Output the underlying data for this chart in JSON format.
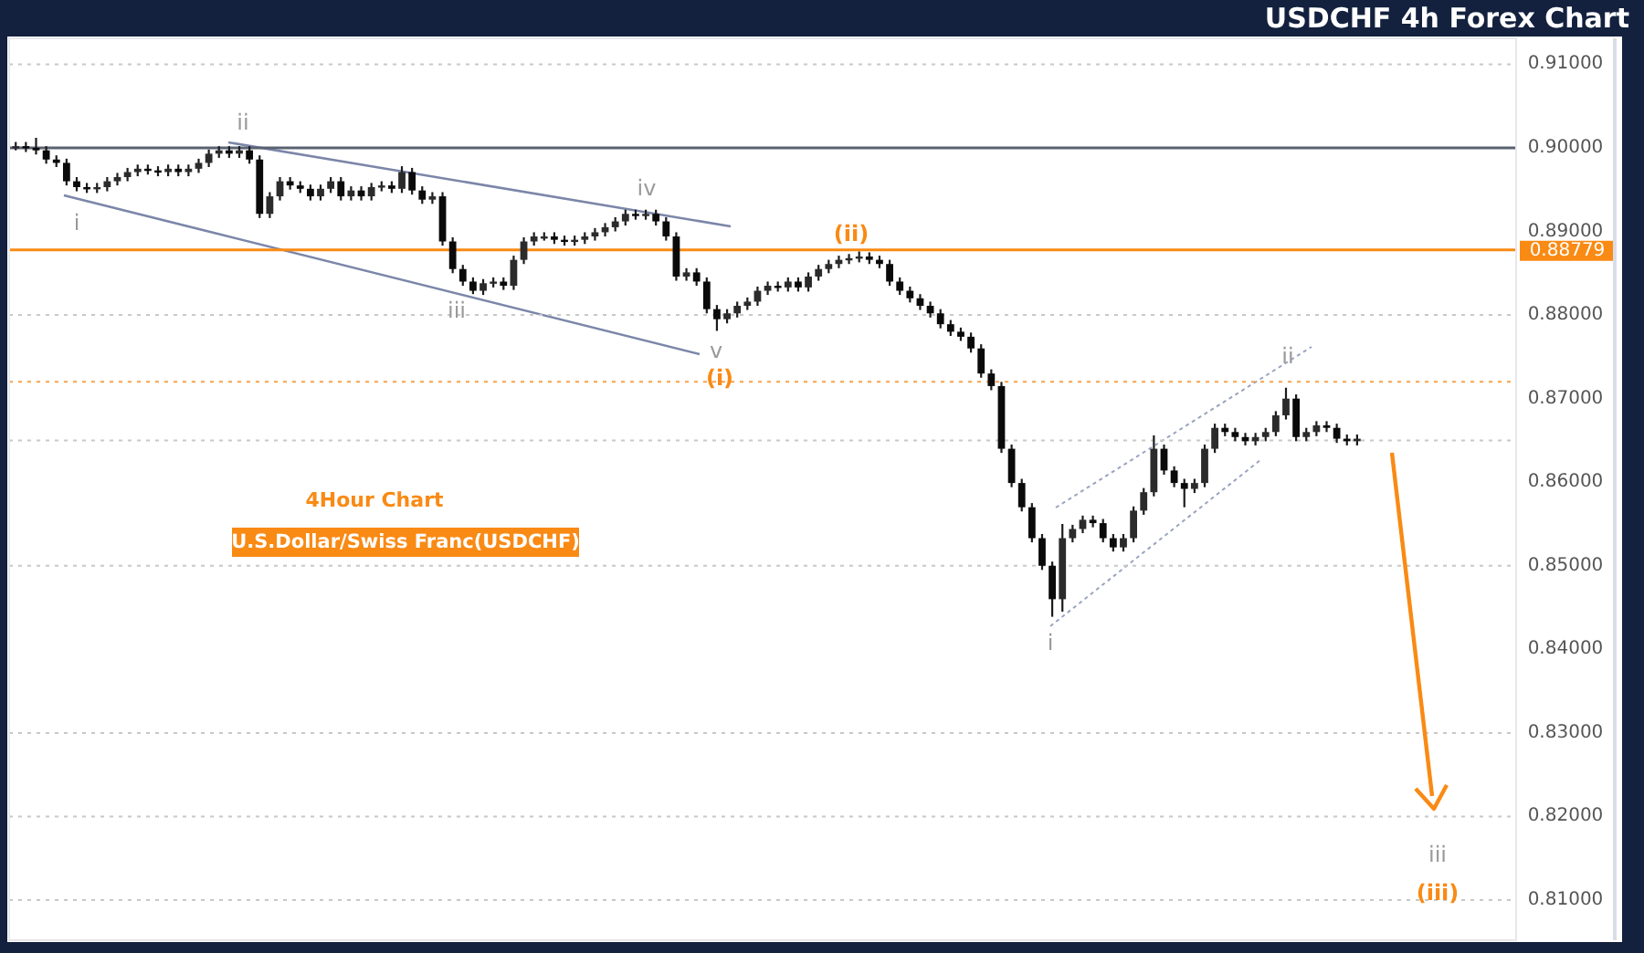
{
  "chart_data": {
    "type": "candlestick",
    "title": "USDCHF 4h Forex Chart",
    "subtitle": "4Hour Chart",
    "categories": [
      null,
      null,
      null,
      null,
      null,
      null,
      null,
      null,
      null,
      null,
      null,
      null,
      null,
      null,
      null,
      null,
      null,
      null,
      null,
      null,
      null,
      null,
      null,
      null,
      null,
      null,
      null,
      null,
      null,
      null,
      null,
      null,
      null,
      null,
      null,
      null,
      null,
      null,
      null,
      null,
      null,
      null,
      null,
      null,
      null,
      null,
      null,
      null,
      null,
      null,
      null,
      null,
      null,
      null,
      null,
      null,
      null,
      null,
      null,
      null,
      null,
      null,
      null,
      null,
      null,
      null,
      null,
      null,
      null,
      null,
      null,
      null,
      null,
      null,
      null,
      null,
      null,
      null,
      null,
      null,
      null,
      null,
      null,
      null,
      null,
      null,
      null,
      null,
      null,
      null,
      null,
      null,
      null,
      null,
      null,
      null,
      null,
      null,
      null,
      null,
      null,
      null,
      null,
      null,
      null,
      null,
      null,
      null,
      null,
      null,
      null,
      null,
      null,
      null,
      null,
      null,
      null,
      null,
      null,
      null,
      null,
      null,
      null,
      null,
      null,
      null,
      null,
      null,
      null,
      null,
      null,
      null,
      null,
      null,
      null,
      null,
      null,
      null,
      null,
      null,
      null,
      null,
      null,
      null,
      null,
      null,
      null,
      null
    ],
    "ohlc": [
      [
        0.9002,
        0.9007,
        0.8997,
        0.9002
      ],
      [
        0.9002,
        0.9007,
        0.8995,
        0.9
      ],
      [
        0.9,
        0.9012,
        0.8992,
        0.8997
      ],
      [
        0.8997,
        0.9002,
        0.8981,
        0.8986
      ],
      [
        0.8986,
        0.8991,
        0.8977,
        0.8982
      ],
      [
        0.8982,
        0.8987,
        0.8955,
        0.896
      ],
      [
        0.896,
        0.8965,
        0.8948,
        0.8953
      ],
      [
        0.8953,
        0.8958,
        0.8946,
        0.8951
      ],
      [
        0.8951,
        0.8958,
        0.8946,
        0.8953
      ],
      [
        0.8953,
        0.8965,
        0.8948,
        0.896
      ],
      [
        0.896,
        0.897,
        0.8955,
        0.8965
      ],
      [
        0.8965,
        0.8976,
        0.896,
        0.8971
      ],
      [
        0.8971,
        0.898,
        0.8966,
        0.8975
      ],
      [
        0.8975,
        0.898,
        0.8968,
        0.8973
      ],
      [
        0.8973,
        0.8978,
        0.8966,
        0.8971
      ],
      [
        0.8971,
        0.898,
        0.8966,
        0.8975
      ],
      [
        0.8975,
        0.898,
        0.8966,
        0.8971
      ],
      [
        0.8971,
        0.898,
        0.8966,
        0.8975
      ],
      [
        0.8975,
        0.8987,
        0.897,
        0.8982
      ],
      [
        0.8982,
        0.8998,
        0.8977,
        0.8993
      ],
      [
        0.8993,
        0.9002,
        0.8988,
        0.8997
      ],
      [
        0.8997,
        0.9002,
        0.8988,
        0.8993
      ],
      [
        0.8993,
        0.9002,
        0.8988,
        0.8997
      ],
      [
        0.8997,
        0.9002,
        0.8981,
        0.8986
      ],
      [
        0.8986,
        0.8991,
        0.8916,
        0.8921
      ],
      [
        0.8921,
        0.8947,
        0.8916,
        0.8942
      ],
      [
        0.8942,
        0.8965,
        0.8937,
        0.896
      ],
      [
        0.896,
        0.8965,
        0.895,
        0.8955
      ],
      [
        0.8955,
        0.896,
        0.8946,
        0.8951
      ],
      [
        0.8951,
        0.8956,
        0.8937,
        0.8942
      ],
      [
        0.8942,
        0.8956,
        0.8937,
        0.8951
      ],
      [
        0.8951,
        0.8965,
        0.8946,
        0.896
      ],
      [
        0.896,
        0.8965,
        0.8937,
        0.8942
      ],
      [
        0.8942,
        0.8954,
        0.8937,
        0.8949
      ],
      [
        0.8949,
        0.8954,
        0.8937,
        0.8942
      ],
      [
        0.8942,
        0.8958,
        0.8937,
        0.8953
      ],
      [
        0.8953,
        0.896,
        0.8948,
        0.8955
      ],
      [
        0.8955,
        0.896,
        0.8946,
        0.8951
      ],
      [
        0.8951,
        0.8978,
        0.8946,
        0.8971
      ],
      [
        0.8971,
        0.8976,
        0.8944,
        0.8949
      ],
      [
        0.8949,
        0.8954,
        0.8933,
        0.8938
      ],
      [
        0.8938,
        0.8947,
        0.8933,
        0.8942
      ],
      [
        0.8942,
        0.8947,
        0.8883,
        0.8888
      ],
      [
        0.8888,
        0.8893,
        0.885,
        0.8855
      ],
      [
        0.8855,
        0.886,
        0.8835,
        0.884
      ],
      [
        0.884,
        0.8845,
        0.8825,
        0.8829
      ],
      [
        0.8829,
        0.8843,
        0.8824,
        0.8838
      ],
      [
        0.8838,
        0.8845,
        0.8833,
        0.884
      ],
      [
        0.884,
        0.8845,
        0.883,
        0.8835
      ],
      [
        0.8835,
        0.8871,
        0.883,
        0.8866
      ],
      [
        0.8866,
        0.8893,
        0.8861,
        0.8888
      ],
      [
        0.8888,
        0.8899,
        0.8883,
        0.8894
      ],
      [
        0.8894,
        0.8899,
        0.8889,
        0.8894
      ],
      [
        0.8894,
        0.8899,
        0.8885,
        0.889
      ],
      [
        0.889,
        0.8895,
        0.8883,
        0.8888
      ],
      [
        0.8888,
        0.8895,
        0.8883,
        0.889
      ],
      [
        0.889,
        0.8899,
        0.8885,
        0.8894
      ],
      [
        0.8894,
        0.8904,
        0.8889,
        0.8899
      ],
      [
        0.8899,
        0.891,
        0.8894,
        0.8905
      ],
      [
        0.8905,
        0.8917,
        0.89,
        0.8912
      ],
      [
        0.8912,
        0.8926,
        0.8907,
        0.8921
      ],
      [
        0.8921,
        0.8926,
        0.8914,
        0.8919
      ],
      [
        0.8919,
        0.8926,
        0.8914,
        0.8921
      ],
      [
        0.8921,
        0.8926,
        0.8907,
        0.8912
      ],
      [
        0.8912,
        0.8917,
        0.8889,
        0.8894
      ],
      [
        0.8894,
        0.8899,
        0.8841,
        0.8846
      ],
      [
        0.8846,
        0.8856,
        0.8841,
        0.8851
      ],
      [
        0.8851,
        0.8856,
        0.8835,
        0.884
      ],
      [
        0.884,
        0.8845,
        0.8802,
        0.8807
      ],
      [
        0.8807,
        0.8812,
        0.8781,
        0.8795
      ],
      [
        0.8795,
        0.8807,
        0.879,
        0.8802
      ],
      [
        0.8802,
        0.8816,
        0.8797,
        0.8811
      ],
      [
        0.8811,
        0.8821,
        0.8806,
        0.8816
      ],
      [
        0.8816,
        0.8834,
        0.8811,
        0.8829
      ],
      [
        0.8829,
        0.884,
        0.8824,
        0.8835
      ],
      [
        0.8835,
        0.884,
        0.8828,
        0.8833
      ],
      [
        0.8833,
        0.8845,
        0.8828,
        0.884
      ],
      [
        0.884,
        0.8845,
        0.8828,
        0.8833
      ],
      [
        0.8833,
        0.8851,
        0.8828,
        0.8846
      ],
      [
        0.8846,
        0.886,
        0.8841,
        0.8855
      ],
      [
        0.8855,
        0.8866,
        0.885,
        0.8861
      ],
      [
        0.8861,
        0.8871,
        0.8856,
        0.8866
      ],
      [
        0.8866,
        0.8873,
        0.8861,
        0.8868
      ],
      [
        0.8868,
        0.8876,
        0.8863,
        0.887
      ],
      [
        0.887,
        0.8875,
        0.8861,
        0.8866
      ],
      [
        0.8866,
        0.8871,
        0.8856,
        0.8861
      ],
      [
        0.8861,
        0.8866,
        0.8835,
        0.884
      ],
      [
        0.884,
        0.8845,
        0.8824,
        0.8829
      ],
      [
        0.8829,
        0.8834,
        0.8815,
        0.882
      ],
      [
        0.882,
        0.8825,
        0.8806,
        0.8811
      ],
      [
        0.8811,
        0.8816,
        0.8797,
        0.8802
      ],
      [
        0.8802,
        0.8807,
        0.8784,
        0.8789
      ],
      [
        0.8789,
        0.8794,
        0.8775,
        0.878
      ],
      [
        0.878,
        0.8785,
        0.8769,
        0.8774
      ],
      [
        0.8774,
        0.8779,
        0.8755,
        0.876
      ],
      [
        0.876,
        0.8765,
        0.8725,
        0.873
      ],
      [
        0.873,
        0.8735,
        0.871,
        0.8715
      ],
      [
        0.8715,
        0.872,
        0.8635,
        0.864
      ],
      [
        0.864,
        0.8645,
        0.8594,
        0.8599
      ],
      [
        0.8599,
        0.8604,
        0.8565,
        0.857
      ],
      [
        0.857,
        0.8575,
        0.8528,
        0.8533
      ],
      [
        0.8533,
        0.8538,
        0.8495,
        0.85
      ],
      [
        0.85,
        0.8505,
        0.8439,
        0.846
      ],
      [
        0.846,
        0.855,
        0.8445,
        0.8533
      ],
      [
        0.8533,
        0.8549,
        0.8528,
        0.8544
      ],
      [
        0.8544,
        0.856,
        0.8539,
        0.8555
      ],
      [
        0.8555,
        0.856,
        0.8546,
        0.8551
      ],
      [
        0.8551,
        0.8556,
        0.8528,
        0.8533
      ],
      [
        0.8533,
        0.8538,
        0.8517,
        0.8522
      ],
      [
        0.8522,
        0.8538,
        0.8517,
        0.8533
      ],
      [
        0.8533,
        0.8571,
        0.8528,
        0.8566
      ],
      [
        0.8566,
        0.8593,
        0.8561,
        0.8588
      ],
      [
        0.8588,
        0.8656,
        0.8583,
        0.864
      ],
      [
        0.864,
        0.8645,
        0.8609,
        0.8614
      ],
      [
        0.8614,
        0.8619,
        0.8594,
        0.8599
      ],
      [
        0.8599,
        0.8604,
        0.857,
        0.8592
      ],
      [
        0.8592,
        0.8604,
        0.8587,
        0.8599
      ],
      [
        0.8599,
        0.8645,
        0.8594,
        0.864
      ],
      [
        0.864,
        0.867,
        0.8635,
        0.8665
      ],
      [
        0.8665,
        0.867,
        0.8655,
        0.866
      ],
      [
        0.866,
        0.8665,
        0.8649,
        0.8654
      ],
      [
        0.8654,
        0.8659,
        0.8644,
        0.8649
      ],
      [
        0.8649,
        0.8659,
        0.8644,
        0.8654
      ],
      [
        0.8654,
        0.8665,
        0.8649,
        0.866
      ],
      [
        0.866,
        0.8685,
        0.8655,
        0.868
      ],
      [
        0.868,
        0.8713,
        0.8675,
        0.87
      ],
      [
        0.87,
        0.8705,
        0.8649,
        0.8654
      ],
      [
        0.8654,
        0.8665,
        0.8649,
        0.866
      ],
      [
        0.866,
        0.8673,
        0.8655,
        0.8668
      ],
      [
        0.8668,
        0.8673,
        0.866,
        0.8665
      ],
      [
        0.8665,
        0.867,
        0.8647,
        0.8652
      ],
      [
        0.8652,
        0.8657,
        0.8644,
        0.8649
      ],
      [
        0.8649,
        0.8657,
        0.8644,
        0.8652
      ],
      null,
      null,
      null,
      null,
      null,
      null,
      null,
      null,
      null,
      null,
      null,
      null,
      null,
      null,
      null
    ],
    "ylim": [
      0.8052,
      0.9131
    ],
    "yticks": [
      {
        "value": 0.91,
        "label": "0.91000"
      },
      {
        "value": 0.9,
        "label": "0.90000"
      },
      {
        "value": 0.89,
        "label": "0.89000"
      },
      {
        "value": 0.88,
        "label": "0.88000"
      },
      {
        "value": 0.87,
        "label": "0.87000"
      },
      {
        "value": 0.86,
        "label": "0.86000"
      },
      {
        "value": 0.85,
        "label": "0.85000"
      },
      {
        "value": 0.84,
        "label": "0.84000"
      },
      {
        "value": 0.83,
        "label": "0.83000"
      },
      {
        "value": 0.82,
        "label": "0.82000"
      },
      {
        "value": 0.81,
        "label": "0.81000"
      }
    ],
    "tick_labels": "y",
    "ref_lines": [
      {
        "axis": "y",
        "value": 0.91,
        "color": "#c8c8c8",
        "line_style": "dotted"
      },
      {
        "axis": "y",
        "value": 0.88,
        "color": "#c8c8c8",
        "line_style": "dotted"
      },
      {
        "axis": "y",
        "value": 0.865,
        "color": "#c8c8c8",
        "line_style": "dotted"
      },
      {
        "axis": "y",
        "value": 0.85,
        "color": "#c8c8c8",
        "line_style": "dotted"
      },
      {
        "axis": "y",
        "value": 0.83,
        "color": "#c8c8c8",
        "line_style": "dotted"
      },
      {
        "axis": "y",
        "value": 0.82,
        "color": "#c8c8c8",
        "line_style": "dotted"
      },
      {
        "axis": "y",
        "value": 0.81,
        "color": "#c8c8c8",
        "line_style": "dotted"
      },
      {
        "axis": "y",
        "value": 0.9,
        "color": "#5a6272",
        "line_style": "solid"
      },
      {
        "axis": "y",
        "value": 0.872,
        "color": "#f7a24a",
        "line_style": "dotted"
      },
      {
        "axis": "y",
        "value": 0.88779,
        "label": "0.88779",
        "color": "#f98a14",
        "line_style": "solid"
      }
    ],
    "annotations": [
      "i",
      "ii",
      "iii",
      "iv",
      "v",
      "(i)",
      "(ii)",
      "i",
      "ii",
      "iii",
      "(iii)",
      "U.S.Dollar/Swiss Franc(USDCHF)"
    ]
  }
}
